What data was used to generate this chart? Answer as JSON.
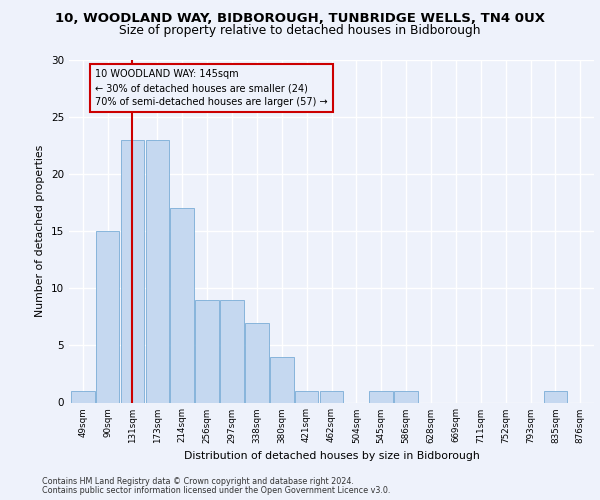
{
  "title1": "10, WOODLAND WAY, BIDBOROUGH, TUNBRIDGE WELLS, TN4 0UX",
  "title2": "Size of property relative to detached houses in Bidborough",
  "xlabel": "Distribution of detached houses by size in Bidborough",
  "ylabel": "Number of detached properties",
  "categories": [
    "49sqm",
    "90sqm",
    "131sqm",
    "173sqm",
    "214sqm",
    "256sqm",
    "297sqm",
    "338sqm",
    "380sqm",
    "421sqm",
    "462sqm",
    "504sqm",
    "545sqm",
    "586sqm",
    "628sqm",
    "669sqm",
    "711sqm",
    "752sqm",
    "793sqm",
    "835sqm",
    "876sqm"
  ],
  "values": [
    1,
    15,
    23,
    23,
    17,
    9,
    9,
    7,
    4,
    1,
    1,
    0,
    1,
    1,
    0,
    0,
    0,
    0,
    0,
    1,
    0
  ],
  "bar_color": "#c5d8f0",
  "bar_edgecolor": "#7aadd7",
  "vline_x": 2.0,
  "vline_color": "#cc0000",
  "annotation_line1": "10 WOODLAND WAY: 145sqm",
  "annotation_line2": "← 30% of detached houses are smaller (24)",
  "annotation_line3": "70% of semi-detached houses are larger (57) →",
  "annotation_box_edgecolor": "#cc0000",
  "ylim": [
    0,
    30
  ],
  "yticks": [
    0,
    5,
    10,
    15,
    20,
    25,
    30
  ],
  "background_color": "#eef2fb",
  "grid_color": "#ffffff",
  "footer1": "Contains HM Land Registry data © Crown copyright and database right 2024.",
  "footer2": "Contains public sector information licensed under the Open Government Licence v3.0."
}
